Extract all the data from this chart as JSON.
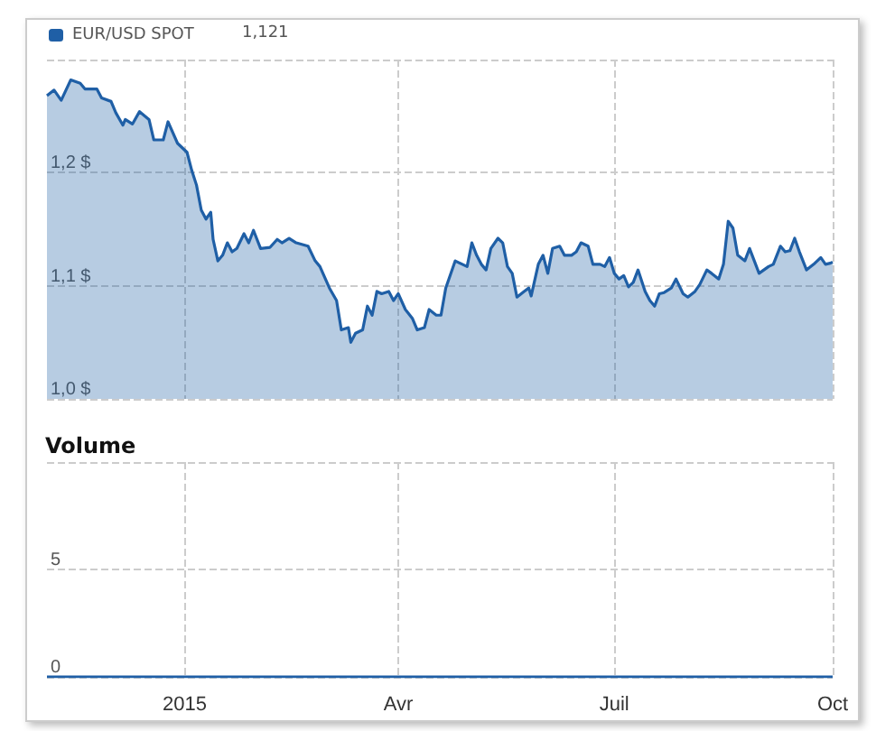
{
  "chart_data": [
    {
      "type": "area",
      "legend": "top left",
      "grid": true,
      "tick_labels": "y",
      "annotations": [
        "1,121"
      ],
      "xlim": [
        "2014-11-04",
        "2015-10-01"
      ],
      "xticks": [
        {
          "value": "2015-01-01",
          "label": null
        },
        {
          "value": "2015-04-01",
          "label": null
        },
        {
          "value": "2015-07-01",
          "label": null
        },
        {
          "value": "2015-10-01",
          "label": null
        }
      ],
      "ylim": [
        1.0,
        1.3
      ],
      "yticks": [
        {
          "value": 1.0,
          "label": "1,0 $"
        },
        {
          "value": 1.1,
          "label": "1,1 $"
        },
        {
          "value": 1.2,
          "label": "1,2 $"
        },
        {
          "value": 1.3,
          "label": null
        }
      ],
      "series": [
        {
          "name": "EUR/USD SPOT",
          "color": "#1f5fa6",
          "x": [
            "2014-11-04",
            "2014-11-07",
            "2014-11-10",
            "2014-11-14",
            "2014-11-18",
            "2014-11-20",
            "2014-11-25",
            "2014-11-27",
            "2014-12-01",
            "2014-12-03",
            "2014-12-06",
            "2014-12-07",
            "2014-12-10",
            "2014-12-13",
            "2014-12-17",
            "2014-12-19",
            "2014-12-23",
            "2014-12-25",
            "2014-12-29",
            "2015-01-02",
            "2015-01-04",
            "2015-01-06",
            "2015-01-08",
            "2015-01-10",
            "2015-01-12",
            "2015-01-13",
            "2015-01-15",
            "2015-01-17",
            "2015-01-19",
            "2015-01-21",
            "2015-01-23",
            "2015-01-26",
            "2015-01-28",
            "2015-01-30",
            "2015-02-02",
            "2015-02-06",
            "2015-02-09",
            "2015-02-11",
            "2015-02-14",
            "2015-02-17",
            "2015-02-22",
            "2015-02-25",
            "2015-02-27",
            "2015-03-03",
            "2015-03-06",
            "2015-03-08",
            "2015-03-11",
            "2015-03-12",
            "2015-03-14",
            "2015-03-17",
            "2015-03-19",
            "2015-03-21",
            "2015-03-23",
            "2015-03-25",
            "2015-03-28",
            "2015-03-30",
            "2015-04-01",
            "2015-04-04",
            "2015-04-07",
            "2015-04-09",
            "2015-04-12",
            "2015-04-14",
            "2015-04-17",
            "2015-04-19",
            "2015-04-21",
            "2015-04-25",
            "2015-04-28",
            "2015-04-30",
            "2015-05-02",
            "2015-05-04",
            "2015-05-06",
            "2015-05-08",
            "2015-05-10",
            "2015-05-13",
            "2015-05-15",
            "2015-05-17",
            "2015-05-19",
            "2015-05-21",
            "2015-05-24",
            "2015-05-26",
            "2015-05-27",
            "2015-05-30",
            "2015-06-01",
            "2015-06-03",
            "2015-06-05",
            "2015-06-08",
            "2015-06-10",
            "2015-06-13",
            "2015-06-15",
            "2015-06-17",
            "2015-06-20",
            "2015-06-22",
            "2015-06-25",
            "2015-06-27",
            "2015-06-29",
            "2015-07-01",
            "2015-07-03",
            "2015-07-05",
            "2015-07-07",
            "2015-07-09",
            "2015-07-11",
            "2015-07-14",
            "2015-07-16",
            "2015-07-18",
            "2015-07-20",
            "2015-07-22",
            "2015-07-25",
            "2015-07-27",
            "2015-07-30",
            "2015-08-01",
            "2015-08-04",
            "2015-08-06",
            "2015-08-09",
            "2015-08-11",
            "2015-08-14",
            "2015-08-16",
            "2015-08-18",
            "2015-08-20",
            "2015-08-22",
            "2015-08-25",
            "2015-08-27",
            "2015-08-31",
            "2015-09-04",
            "2015-09-06",
            "2015-09-09",
            "2015-09-11",
            "2015-09-13",
            "2015-09-15",
            "2015-09-17",
            "2015-09-20",
            "2015-09-23",
            "2015-09-26",
            "2015-09-28",
            "2015-09-30",
            "2015-10-01"
          ],
          "values": [
            1.268,
            1.273,
            1.264,
            1.282,
            1.279,
            1.274,
            1.274,
            1.266,
            1.263,
            1.253,
            1.242,
            1.247,
            1.243,
            1.254,
            1.247,
            1.229,
            1.229,
            1.245,
            1.226,
            1.218,
            1.202,
            1.189,
            1.167,
            1.159,
            1.165,
            1.141,
            1.122,
            1.127,
            1.138,
            1.13,
            1.133,
            1.146,
            1.138,
            1.149,
            1.133,
            1.134,
            1.141,
            1.138,
            1.142,
            1.138,
            1.135,
            1.122,
            1.117,
            1.098,
            1.087,
            1.061,
            1.063,
            1.05,
            1.058,
            1.061,
            1.082,
            1.074,
            1.095,
            1.093,
            1.095,
            1.087,
            1.093,
            1.079,
            1.071,
            1.061,
            1.063,
            1.079,
            1.074,
            1.074,
            1.098,
            1.122,
            1.119,
            1.117,
            1.138,
            1.127,
            1.119,
            1.114,
            1.133,
            1.142,
            1.138,
            1.117,
            1.111,
            1.09,
            1.095,
            1.098,
            1.091,
            1.119,
            1.127,
            1.111,
            1.133,
            1.135,
            1.127,
            1.127,
            1.13,
            1.138,
            1.135,
            1.119,
            1.119,
            1.117,
            1.125,
            1.111,
            1.106,
            1.109,
            1.099,
            1.103,
            1.114,
            1.095,
            1.087,
            1.082,
            1.093,
            1.094,
            1.098,
            1.106,
            1.093,
            1.09,
            1.095,
            1.101,
            1.114,
            1.111,
            1.106,
            1.119,
            1.157,
            1.151,
            1.127,
            1.122,
            1.133,
            1.111,
            1.117,
            1.119,
            1.135,
            1.13,
            1.131,
            1.142,
            1.13,
            1.114,
            1.119,
            1.125,
            1.119,
            1.12,
            1.121
          ]
        }
      ]
    },
    {
      "type": "line",
      "title": "Volume",
      "grid": true,
      "xlim": [
        "2014-11-04",
        "2015-10-01"
      ],
      "xticks": [
        {
          "value": "2015-01-01",
          "label": "2015"
        },
        {
          "value": "2015-04-01",
          "label": "Avr"
        },
        {
          "value": "2015-07-01",
          "label": "Juil"
        },
        {
          "value": "2015-10-01",
          "label": "Oct"
        }
      ],
      "ylim": [
        0,
        10
      ],
      "yticks": [
        0,
        5,
        {
          "value": 10,
          "label": null
        }
      ],
      "series": [
        {
          "color": "#1f5fa6",
          "x": [
            "2014-11-04",
            "2015-01-01",
            "2015-04-01",
            "2015-07-01",
            "2015-10-01"
          ],
          "values": [
            0,
            0,
            0,
            0,
            0
          ]
        }
      ]
    }
  ]
}
